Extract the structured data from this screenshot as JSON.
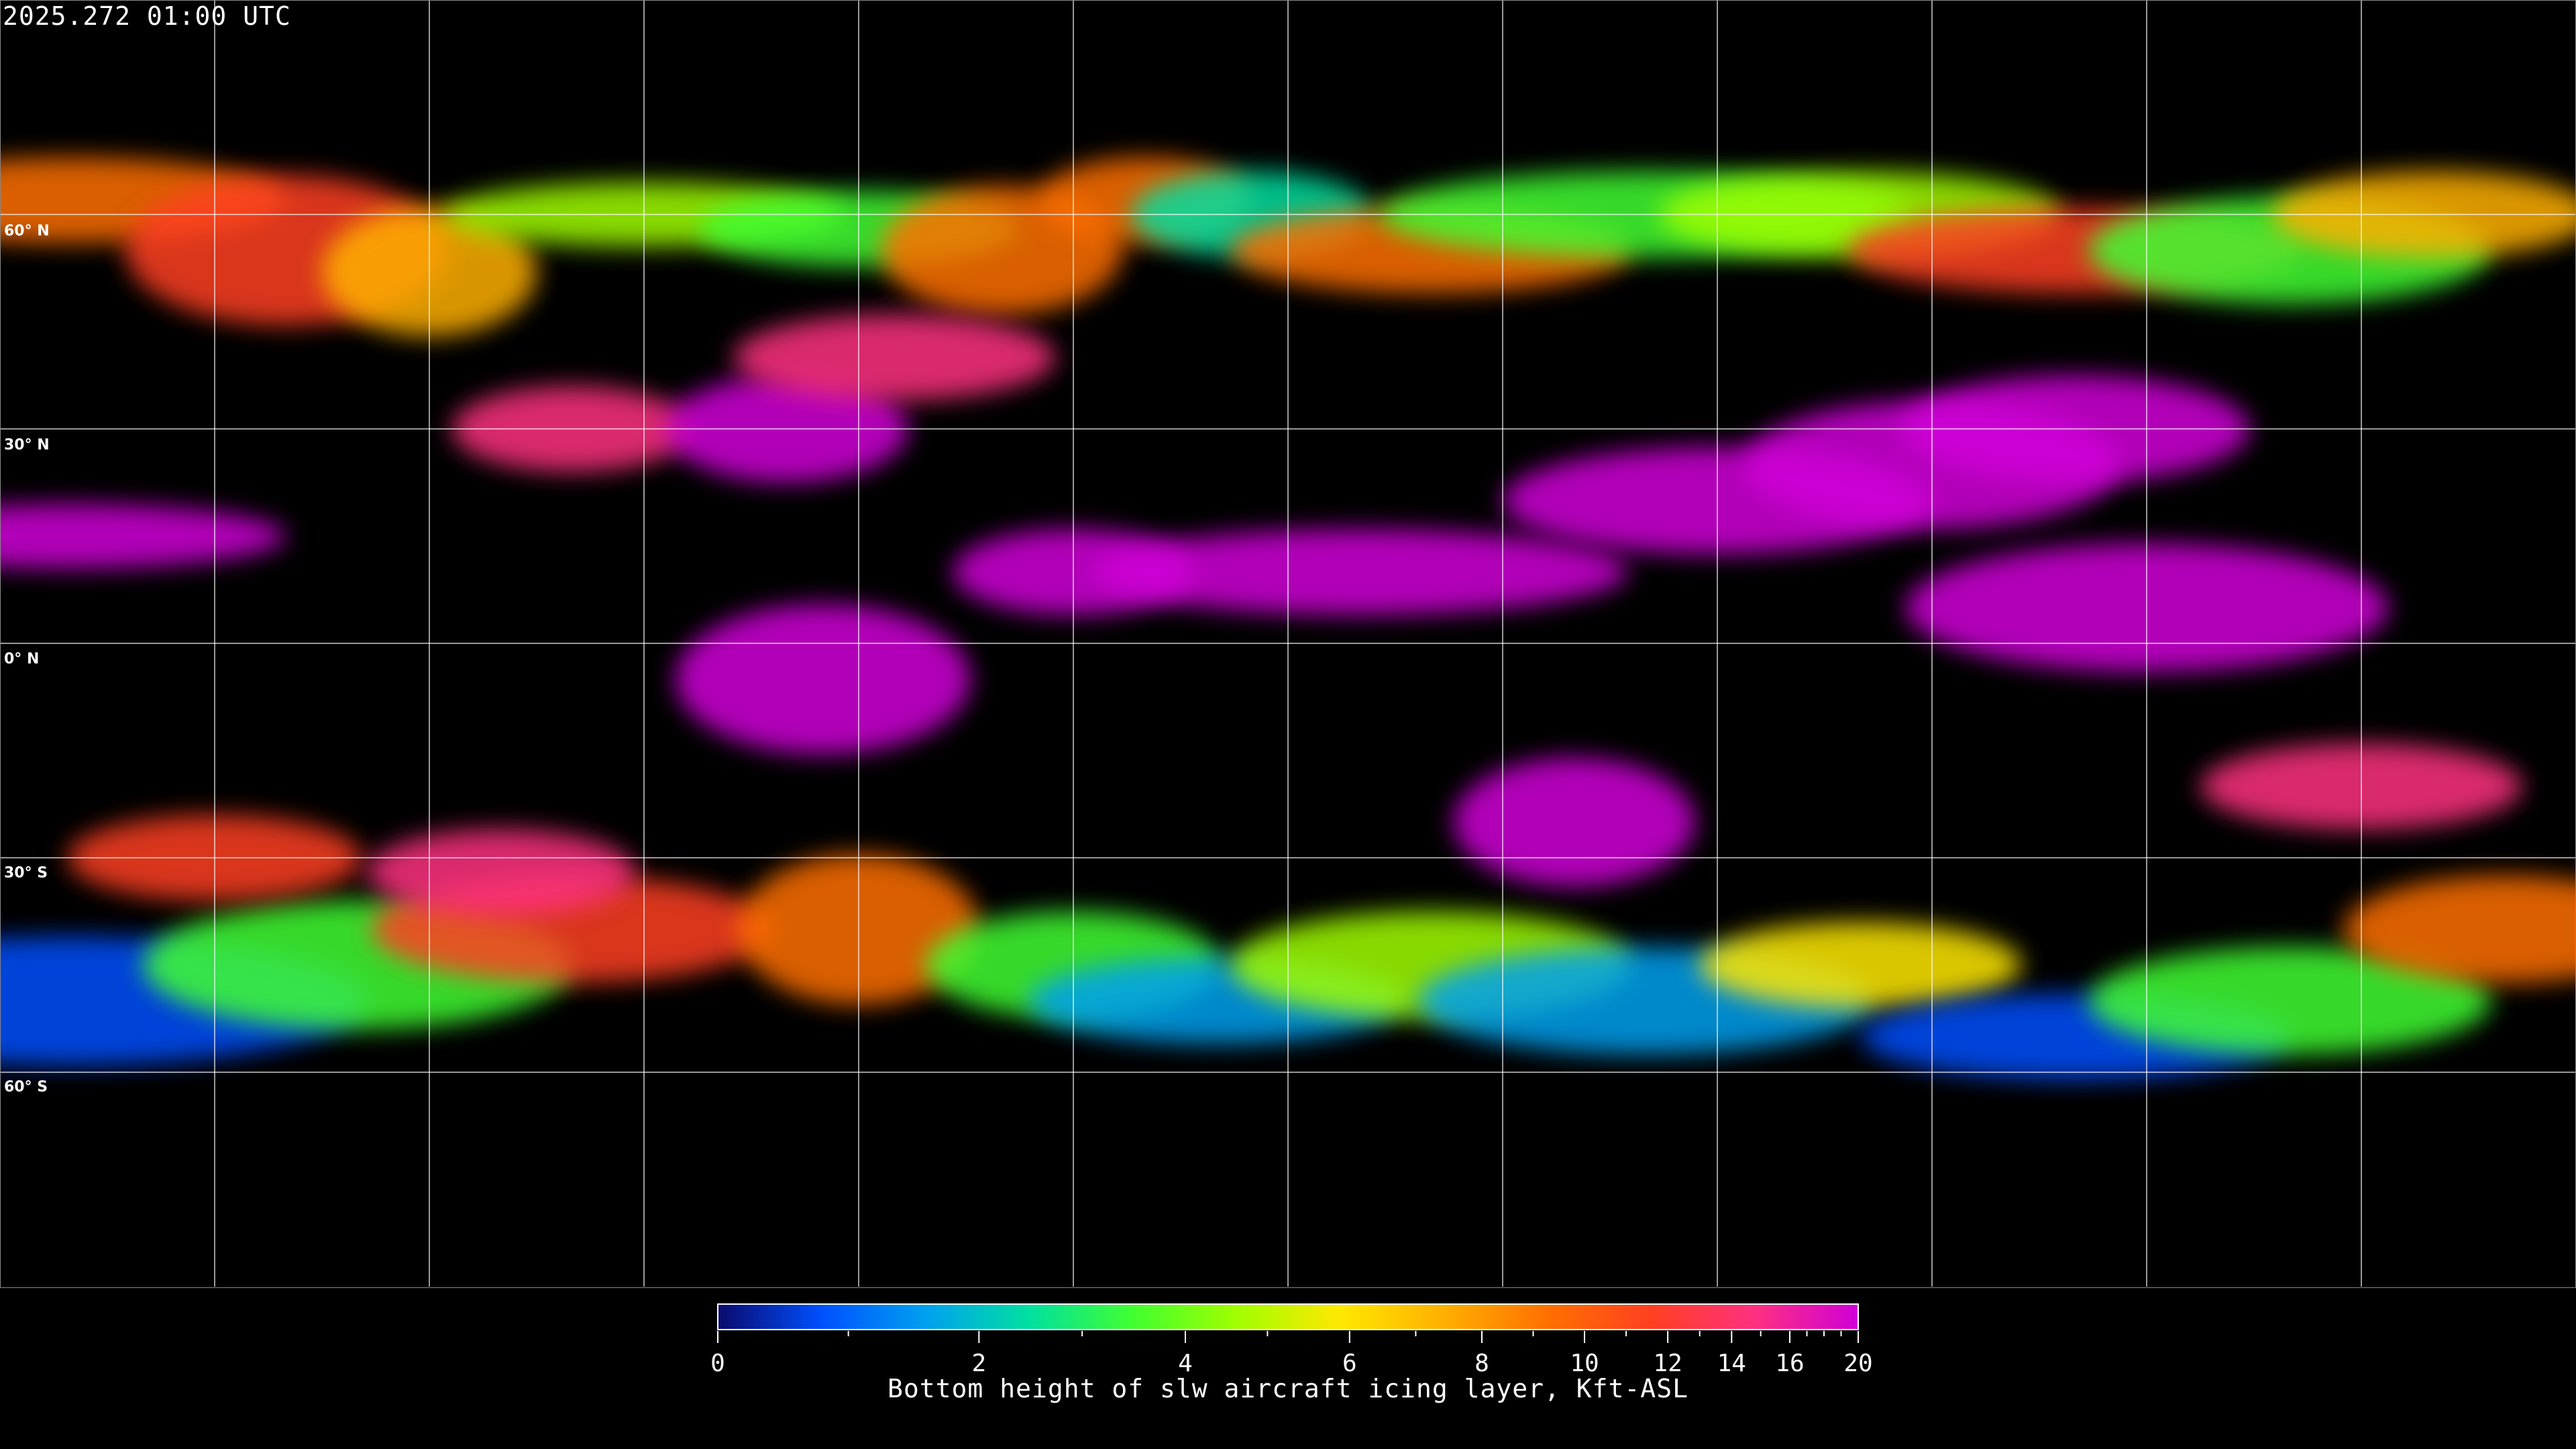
{
  "header": {
    "timestamp": "2025.272 01:00 UTC"
  },
  "map": {
    "projection": "equirectangular",
    "lat_labels": [
      "60° N",
      "30° N",
      "0° N",
      "30° S",
      "60° S"
    ],
    "lat_values": [
      60,
      30,
      0,
      -30,
      -60
    ],
    "lon_gridlines": [
      -150,
      -120,
      -90,
      -60,
      -30,
      0,
      30,
      60,
      90,
      120,
      150
    ],
    "gridline_color": "#ffffff",
    "coastline_color": "#ffffff"
  },
  "colorbar": {
    "title": "Bottom height of slw aircraft icing layer, Kft-ASL",
    "range": [
      0,
      20
    ],
    "tick_labels": [
      "0",
      "2",
      "4",
      "6",
      "8",
      "10",
      "12",
      "14",
      "16",
      "20"
    ],
    "tick_values": [
      0,
      2,
      4,
      6,
      8,
      10,
      12,
      14,
      16,
      20
    ],
    "minor_ticks": [
      1,
      3,
      5,
      7,
      9,
      11,
      13,
      15,
      17,
      18,
      19
    ],
    "colors": [
      "#0a0a6e",
      "#0050ff",
      "#00a0f0",
      "#00e0a0",
      "#40ff30",
      "#a0ff00",
      "#ffe800",
      "#ffb000",
      "#ff7000",
      "#ff4020",
      "#ff3080",
      "#d000d8"
    ]
  }
}
